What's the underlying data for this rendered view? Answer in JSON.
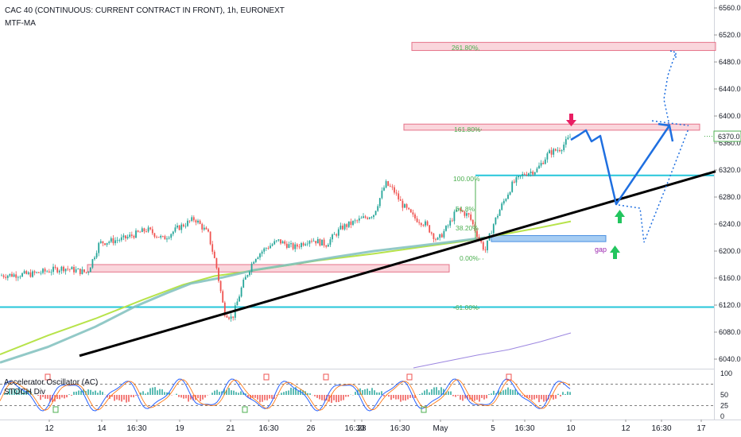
{
  "header": {
    "title": "CAC 40 (CONTINUOUS: CURRENT CONTRACT IN FRONT), 1h, EURONEXT",
    "indicator": "MTF-MA"
  },
  "subpanel": {
    "indicator1": "Accelerator Oscillator (AC)",
    "indicator2": "STOCH Div",
    "scale": [
      "100",
      "50",
      "25",
      "0"
    ]
  },
  "price_axis": {
    "labels": [
      "6560.0",
      "6520.0",
      "6480.0",
      "6440.0",
      "6400.0",
      "6360.0",
      "6320.0",
      "6280.0",
      "6240.0",
      "6200.0",
      "6160.0",
      "6120.0",
      "6080.0",
      "6040.0"
    ],
    "current_price": "6370.0",
    "current_color": "#4caf50"
  },
  "time_axis": {
    "labels": [
      "12",
      "14",
      "16:30",
      "19",
      "21",
      "16:30",
      "26",
      "16:30",
      "28",
      "16:30",
      "May",
      "5",
      "16:30",
      "10",
      "12",
      "16:30",
      "17"
    ]
  },
  "fib_levels": {
    "f261": "261.80%",
    "f161": "161.80%",
    "f100": "100.00%",
    "f618": "61.8%",
    "f382": "38.20%",
    "f0": "0.00%",
    "fm61": "-61.00%"
  },
  "annotations": {
    "gap": "gap"
  },
  "colors": {
    "up_candle": "#26a69a",
    "down_candle": "#ef5350",
    "zone_fill": "#f8c8d0",
    "zone_stroke": "#e57389",
    "blue_line": "#1e90ff",
    "trend": "#000000",
    "ma_green": "#b7e34a",
    "ma_teal": "#7fc0bd",
    "arrow_green": "#22c55e",
    "arrow_red": "#e91e63",
    "gap_zone": "#90c0f0",
    "projection": "#1f6fe0"
  },
  "chart_data": {
    "type": "candlestick",
    "y_range": [
      6020,
      6570
    ],
    "anchors": [
      [
        0,
        6164
      ],
      [
        40,
        6166
      ],
      [
        80,
        6175
      ],
      [
        110,
        6168
      ],
      [
        125,
        6212
      ],
      [
        155,
        6218
      ],
      [
        185,
        6232
      ],
      [
        205,
        6218
      ],
      [
        225,
        6235
      ],
      [
        245,
        6248
      ],
      [
        262,
        6225
      ],
      [
        272,
        6178
      ],
      [
        282,
        6110
      ],
      [
        292,
        6100
      ],
      [
        305,
        6150
      ],
      [
        320,
        6190
      ],
      [
        335,
        6205
      ],
      [
        350,
        6215
      ],
      [
        370,
        6205
      ],
      [
        390,
        6218
      ],
      [
        410,
        6210
      ],
      [
        430,
        6235
      ],
      [
        450,
        6245
      ],
      [
        470,
        6255
      ],
      [
        485,
        6300
      ],
      [
        495,
        6290
      ],
      [
        505,
        6270
      ],
      [
        520,
        6250
      ],
      [
        535,
        6240
      ],
      [
        550,
        6215
      ],
      [
        565,
        6240
      ],
      [
        575,
        6262
      ],
      [
        590,
        6252
      ],
      [
        600,
        6225
      ],
      [
        610,
        6200
      ],
      [
        620,
        6238
      ],
      [
        630,
        6265
      ],
      [
        645,
        6300
      ],
      [
        660,
        6315
      ],
      [
        675,
        6320
      ],
      [
        690,
        6345
      ],
      [
        705,
        6352
      ],
      [
        718,
        6370
      ]
    ],
    "ma_slow": [
      [
        0,
        6047
      ],
      [
        60,
        6075
      ],
      [
        120,
        6100
      ],
      [
        180,
        6128
      ],
      [
        230,
        6150
      ],
      [
        270,
        6163
      ],
      [
        300,
        6168
      ],
      [
        340,
        6175
      ],
      [
        400,
        6186
      ],
      [
        470,
        6196
      ],
      [
        530,
        6206
      ],
      [
        580,
        6214
      ],
      [
        620,
        6222
      ],
      [
        680,
        6235
      ],
      [
        718,
        6244
      ]
    ],
    "ma_fast": [
      [
        0,
        6035
      ],
      [
        60,
        6058
      ],
      [
        120,
        6088
      ],
      [
        170,
        6118
      ],
      [
        210,
        6138
      ],
      [
        240,
        6152
      ],
      [
        280,
        6161
      ],
      [
        320,
        6172
      ],
      [
        370,
        6181
      ],
      [
        420,
        6191
      ],
      [
        470,
        6200
      ],
      [
        520,
        6207
      ],
      [
        570,
        6214
      ],
      [
        610,
        6220
      ]
    ],
    "trendline": [
      [
        100,
        6045
      ],
      [
        900,
        6318
      ]
    ],
    "blue_hlines": [
      6312,
      6117
    ],
    "zones": [
      {
        "x1": 518,
        "x2": 900,
        "y_top": 6509,
        "y_bot": 6497
      },
      {
        "x1": 508,
        "x2": 880,
        "y_top": 6388,
        "y_bot": 6379
      },
      {
        "x1": 110,
        "x2": 565,
        "y_top": 6180,
        "y_bot": 6169
      }
    ],
    "gap_zone": {
      "x1": 618,
      "x2": 762,
      "y_top": 6223,
      "y_bot": 6214
    }
  }
}
